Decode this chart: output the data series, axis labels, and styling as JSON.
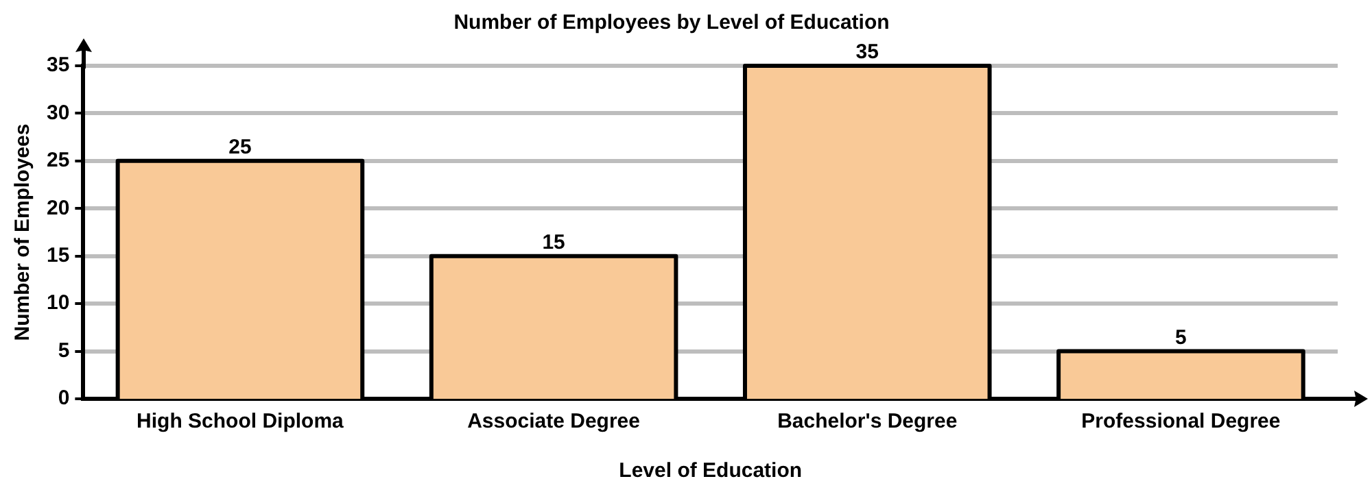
{
  "chart_data": {
    "type": "bar",
    "title": "Number of Employees by Level of Education",
    "xlabel": "Level of Education",
    "ylabel": "Number of Employees",
    "categories": [
      "High School Diploma",
      "Associate Degree",
      "Bachelor's Degree",
      "Professional Degree"
    ],
    "values": [
      25,
      15,
      35,
      5
    ],
    "color": "#f9c997",
    "ylim": [
      0,
      35
    ],
    "yticks": [
      0,
      5,
      10,
      15,
      20,
      25,
      30,
      35
    ],
    "grid": "y",
    "data_labels": true,
    "legend": false
  }
}
